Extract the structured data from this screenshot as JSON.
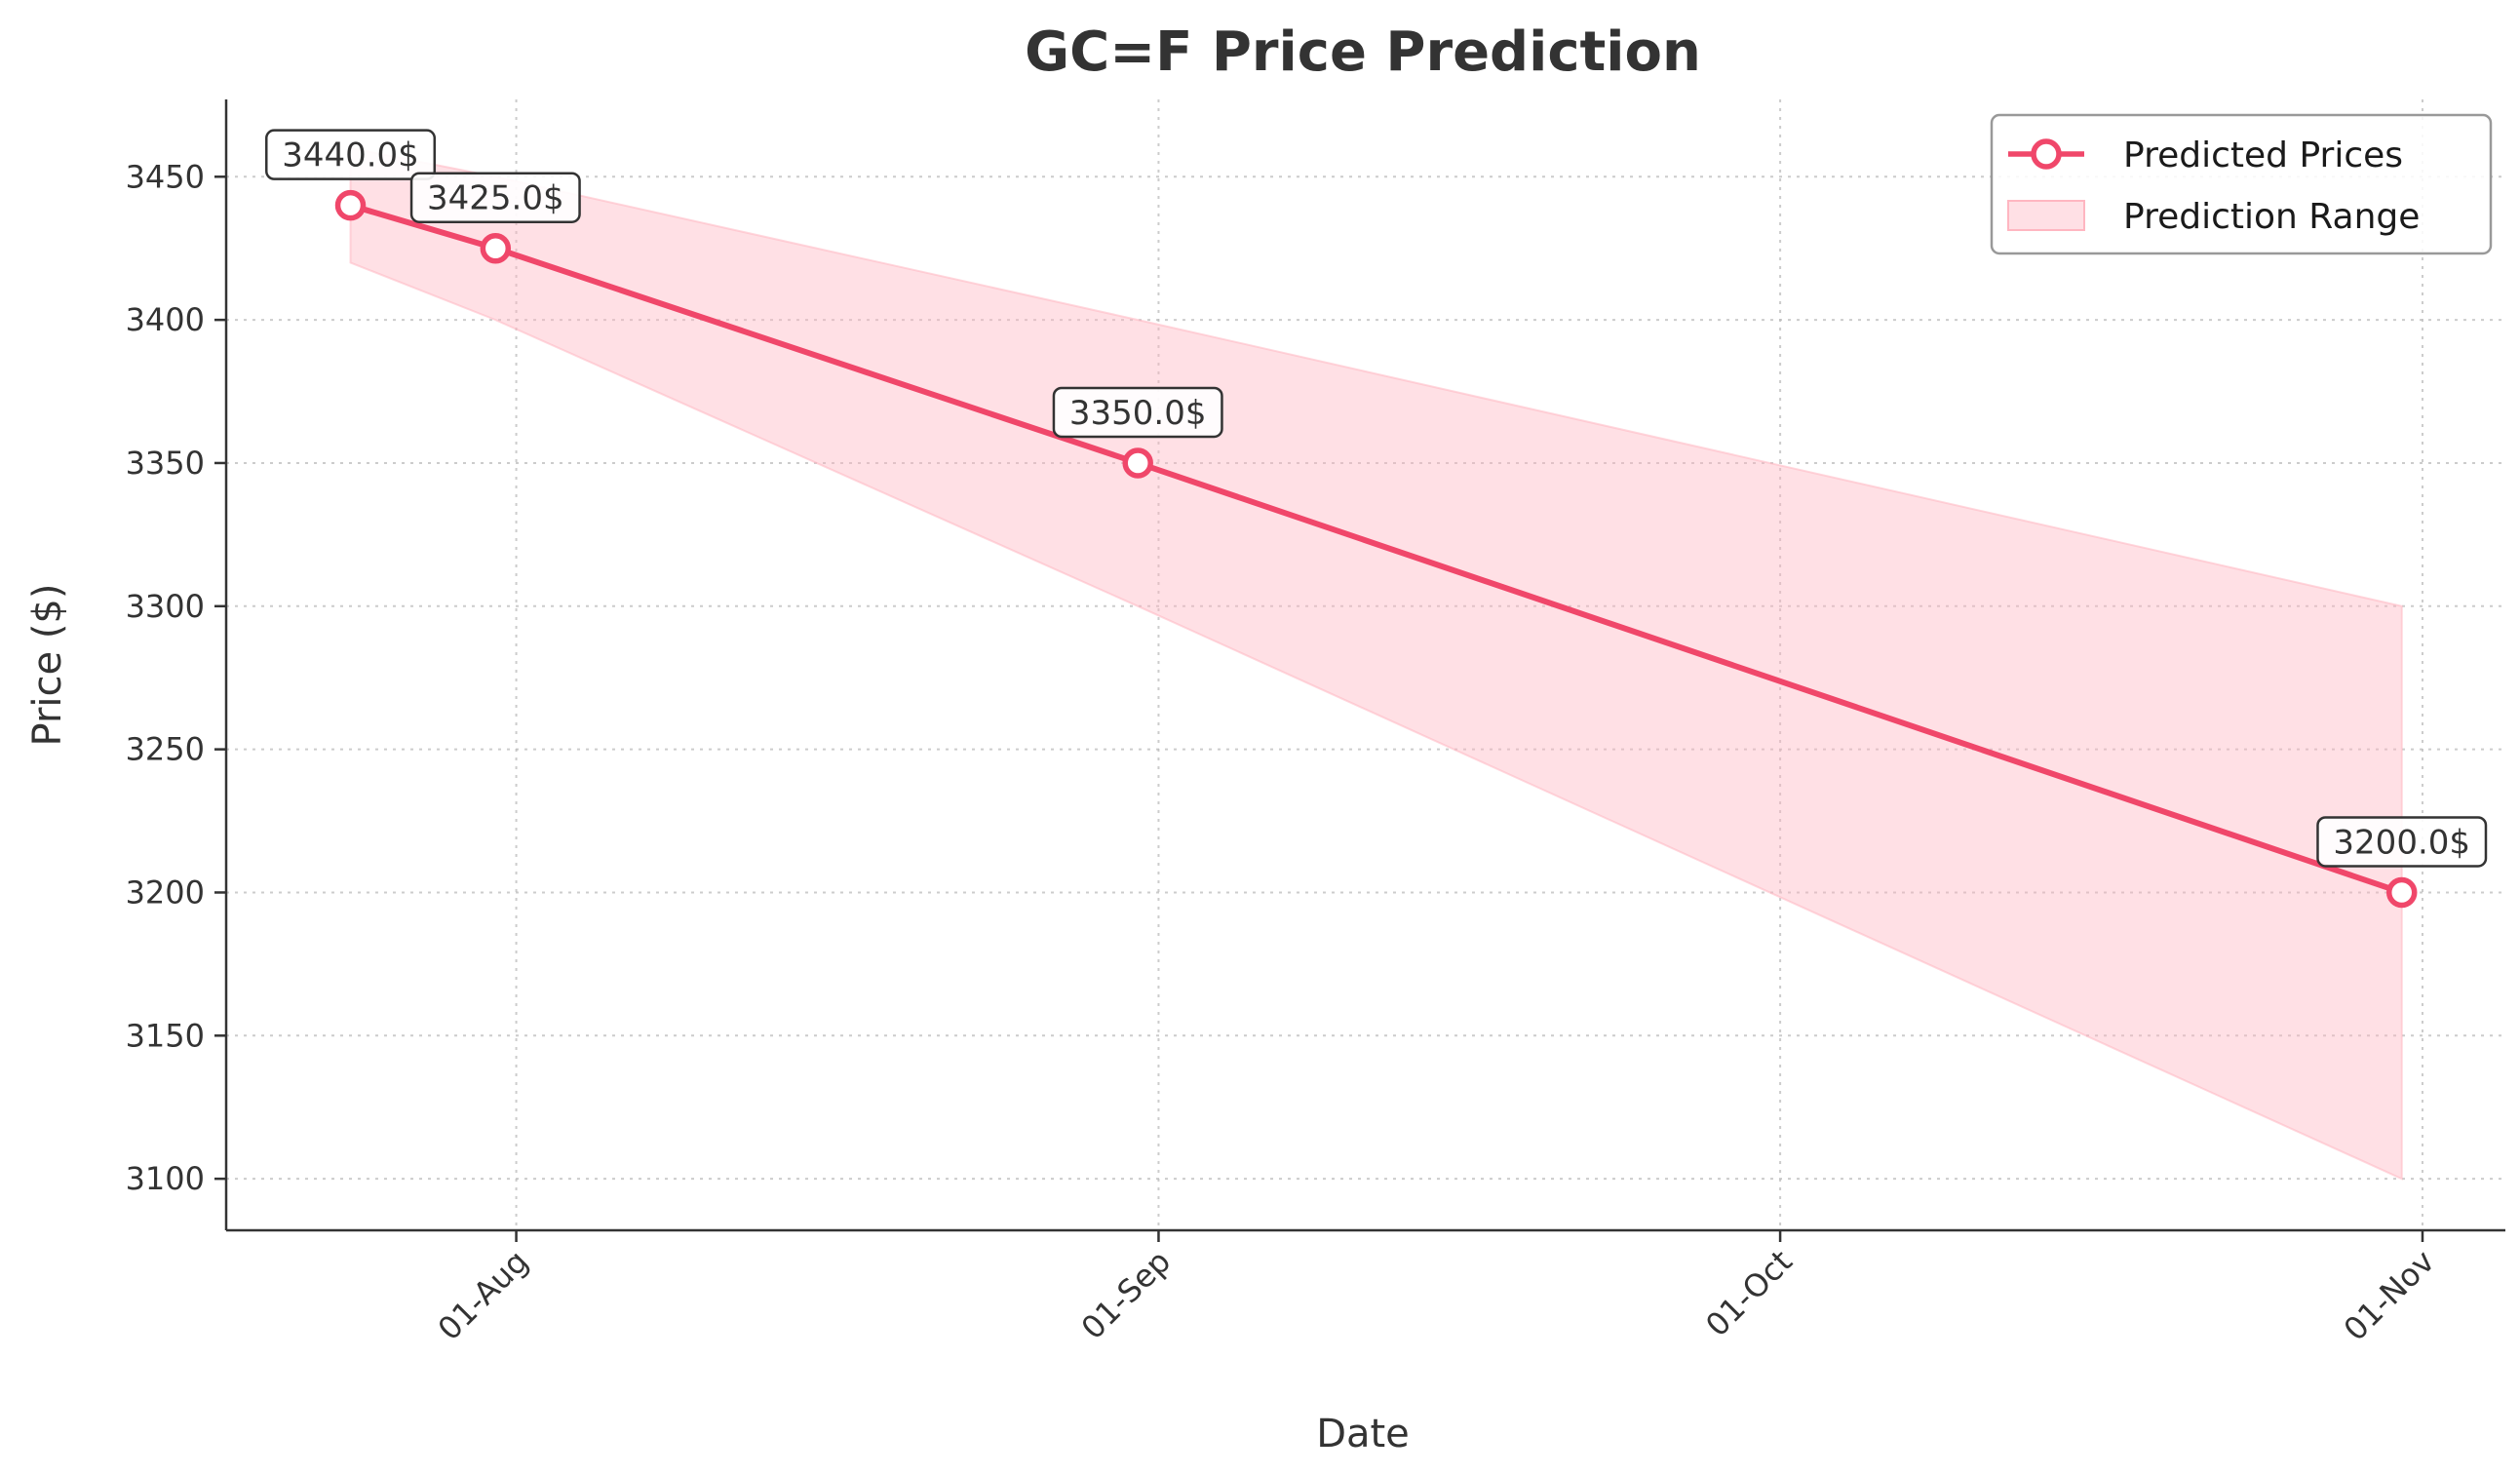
{
  "chart_data": {
    "type": "line",
    "title": "GC=F Price Prediction",
    "xlabel": "Date",
    "ylabel": "Price ($)",
    "x": [
      "2025-07-24",
      "2025-07-31",
      "2025-08-31",
      "2025-10-31"
    ],
    "xlim": [
      "2025-07-18",
      "2025-11-05"
    ],
    "ylim": [
      3082,
      3477
    ],
    "x_ticks": [
      {
        "date": "2025-08-01",
        "label": "01-Aug"
      },
      {
        "date": "2025-09-01",
        "label": "01-Sep"
      },
      {
        "date": "2025-10-01",
        "label": "01-Oct"
      },
      {
        "date": "2025-11-01",
        "label": "01-Nov"
      }
    ],
    "y_ticks": [
      3100,
      3150,
      3200,
      3250,
      3300,
      3350,
      3400,
      3450
    ],
    "series": [
      {
        "name": "Predicted Prices",
        "values": [
          3440,
          3425,
          3350,
          3200
        ],
        "labels": [
          "3440.0$",
          "3425.0$",
          "3350.0$",
          "3200.0$"
        ],
        "color": "#f0476a"
      }
    ],
    "range": {
      "name": "Prediction Range",
      "lower": [
        3420,
        3400,
        3300,
        3100
      ],
      "upper": [
        3460,
        3450,
        3400,
        3300
      ],
      "color": "#ffb6c1"
    },
    "grid": true,
    "legend_position": "top-right"
  }
}
